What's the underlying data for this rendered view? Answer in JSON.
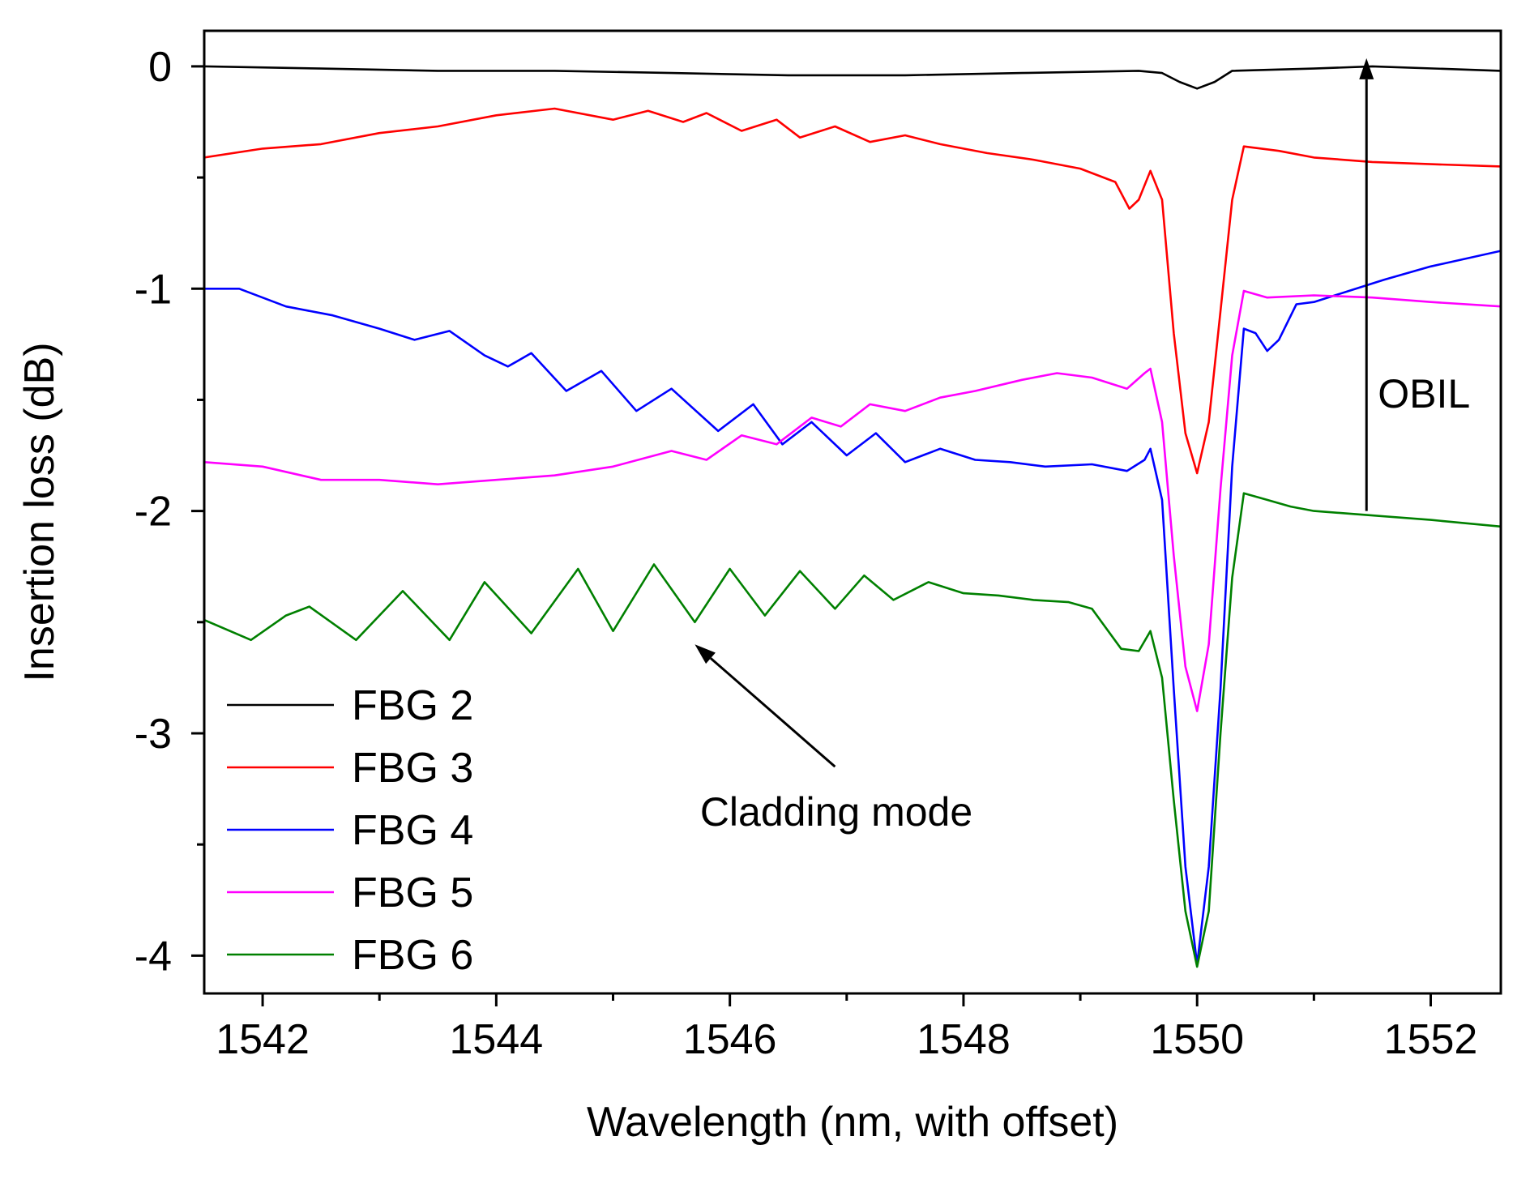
{
  "chart_data": {
    "type": "line",
    "title": "",
    "xlabel": "Wavelength (nm, with offset)",
    "ylabel": "Insertion loss (dB)",
    "xlim": [
      1541.5,
      1552.6
    ],
    "ylim": [
      -4.17,
      0.16
    ],
    "x_ticks": [
      1542,
      1544,
      1546,
      1548,
      1550,
      1552
    ],
    "x_tick_labels": [
      "1542",
      "1544",
      "1546",
      "1548",
      "1550",
      "1552"
    ],
    "x_minor_ticks": [
      1543,
      1545,
      1547,
      1549,
      1551
    ],
    "y_ticks": [
      0,
      -1,
      -2,
      -3,
      -4
    ],
    "y_tick_labels": [
      "0",
      "-1",
      "-2",
      "-3",
      "-4"
    ],
    "y_minor_ticks": [
      -0.5,
      -1.5,
      -2.5,
      -3.5
    ],
    "grid": false,
    "legend_position": "bottom-left",
    "series": [
      {
        "name": "FBG 2",
        "color": "#000000",
        "points": [
          [
            1541.5,
            0.0
          ],
          [
            1542.5,
            -0.01
          ],
          [
            1543.5,
            -0.02
          ],
          [
            1544.5,
            -0.02
          ],
          [
            1545.5,
            -0.03
          ],
          [
            1546.5,
            -0.04
          ],
          [
            1547.5,
            -0.04
          ],
          [
            1548.5,
            -0.03
          ],
          [
            1549.5,
            -0.02
          ],
          [
            1549.7,
            -0.03
          ],
          [
            1549.85,
            -0.07
          ],
          [
            1550.0,
            -0.1
          ],
          [
            1550.15,
            -0.07
          ],
          [
            1550.3,
            -0.02
          ],
          [
            1551.0,
            -0.01
          ],
          [
            1551.5,
            0.0
          ],
          [
            1552.6,
            -0.02
          ]
        ]
      },
      {
        "name": "FBG 3",
        "color": "#ff0000",
        "points": [
          [
            1541.5,
            -0.41
          ],
          [
            1542.0,
            -0.37
          ],
          [
            1542.5,
            -0.35
          ],
          [
            1543.0,
            -0.3
          ],
          [
            1543.5,
            -0.27
          ],
          [
            1544.0,
            -0.22
          ],
          [
            1544.5,
            -0.19
          ],
          [
            1545.0,
            -0.24
          ],
          [
            1545.3,
            -0.2
          ],
          [
            1545.6,
            -0.25
          ],
          [
            1545.8,
            -0.21
          ],
          [
            1546.1,
            -0.29
          ],
          [
            1546.4,
            -0.24
          ],
          [
            1546.6,
            -0.32
          ],
          [
            1546.9,
            -0.27
          ],
          [
            1547.2,
            -0.34
          ],
          [
            1547.5,
            -0.31
          ],
          [
            1547.8,
            -0.35
          ],
          [
            1548.2,
            -0.39
          ],
          [
            1548.6,
            -0.42
          ],
          [
            1549.0,
            -0.46
          ],
          [
            1549.3,
            -0.52
          ],
          [
            1549.42,
            -0.64
          ],
          [
            1549.5,
            -0.6
          ],
          [
            1549.6,
            -0.47
          ],
          [
            1549.7,
            -0.6
          ],
          [
            1549.8,
            -1.2
          ],
          [
            1549.9,
            -1.65
          ],
          [
            1550.0,
            -1.83
          ],
          [
            1550.1,
            -1.6
          ],
          [
            1550.2,
            -1.1
          ],
          [
            1550.3,
            -0.6
          ],
          [
            1550.4,
            -0.36
          ],
          [
            1550.7,
            -0.38
          ],
          [
            1551.0,
            -0.41
          ],
          [
            1551.5,
            -0.43
          ],
          [
            1552.0,
            -0.44
          ],
          [
            1552.6,
            -0.45
          ]
        ]
      },
      {
        "name": "FBG 4",
        "color": "#0000ff",
        "points": [
          [
            1541.5,
            -1.0
          ],
          [
            1541.8,
            -1.0
          ],
          [
            1542.2,
            -1.08
          ],
          [
            1542.6,
            -1.12
          ],
          [
            1543.0,
            -1.18
          ],
          [
            1543.3,
            -1.23
          ],
          [
            1543.6,
            -1.19
          ],
          [
            1543.9,
            -1.3
          ],
          [
            1544.1,
            -1.35
          ],
          [
            1544.3,
            -1.29
          ],
          [
            1544.6,
            -1.46
          ],
          [
            1544.9,
            -1.37
          ],
          [
            1545.2,
            -1.55
          ],
          [
            1545.5,
            -1.45
          ],
          [
            1545.9,
            -1.64
          ],
          [
            1546.2,
            -1.52
          ],
          [
            1546.45,
            -1.7
          ],
          [
            1546.7,
            -1.6
          ],
          [
            1547.0,
            -1.75
          ],
          [
            1547.25,
            -1.65
          ],
          [
            1547.5,
            -1.78
          ],
          [
            1547.8,
            -1.72
          ],
          [
            1548.1,
            -1.77
          ],
          [
            1548.4,
            -1.78
          ],
          [
            1548.7,
            -1.8
          ],
          [
            1549.1,
            -1.79
          ],
          [
            1549.4,
            -1.82
          ],
          [
            1549.55,
            -1.77
          ],
          [
            1549.6,
            -1.72
          ],
          [
            1549.7,
            -1.95
          ],
          [
            1549.8,
            -2.8
          ],
          [
            1549.9,
            -3.6
          ],
          [
            1550.0,
            -4.04
          ],
          [
            1550.1,
            -3.6
          ],
          [
            1550.2,
            -2.8
          ],
          [
            1550.3,
            -1.8
          ],
          [
            1550.4,
            -1.18
          ],
          [
            1550.5,
            -1.2
          ],
          [
            1550.6,
            -1.28
          ],
          [
            1550.7,
            -1.23
          ],
          [
            1550.85,
            -1.07
          ],
          [
            1551.0,
            -1.06
          ],
          [
            1551.3,
            -1.01
          ],
          [
            1551.6,
            -0.96
          ],
          [
            1552.0,
            -0.9
          ],
          [
            1552.6,
            -0.83
          ]
        ]
      },
      {
        "name": "FBG 5",
        "color": "#ff00ff",
        "points": [
          [
            1541.5,
            -1.78
          ],
          [
            1542.0,
            -1.8
          ],
          [
            1542.5,
            -1.86
          ],
          [
            1543.0,
            -1.86
          ],
          [
            1543.5,
            -1.88
          ],
          [
            1544.0,
            -1.86
          ],
          [
            1544.5,
            -1.84
          ],
          [
            1545.0,
            -1.8
          ],
          [
            1545.5,
            -1.73
          ],
          [
            1545.8,
            -1.77
          ],
          [
            1546.1,
            -1.66
          ],
          [
            1546.4,
            -1.7
          ],
          [
            1546.7,
            -1.58
          ],
          [
            1546.95,
            -1.62
          ],
          [
            1547.2,
            -1.52
          ],
          [
            1547.5,
            -1.55
          ],
          [
            1547.8,
            -1.49
          ],
          [
            1548.1,
            -1.46
          ],
          [
            1548.5,
            -1.41
          ],
          [
            1548.8,
            -1.38
          ],
          [
            1549.1,
            -1.4
          ],
          [
            1549.4,
            -1.45
          ],
          [
            1549.55,
            -1.38
          ],
          [
            1549.6,
            -1.36
          ],
          [
            1549.7,
            -1.6
          ],
          [
            1549.8,
            -2.2
          ],
          [
            1549.9,
            -2.7
          ],
          [
            1550.0,
            -2.9
          ],
          [
            1550.1,
            -2.6
          ],
          [
            1550.2,
            -1.9
          ],
          [
            1550.3,
            -1.3
          ],
          [
            1550.4,
            -1.01
          ],
          [
            1550.6,
            -1.04
          ],
          [
            1551.0,
            -1.03
          ],
          [
            1551.5,
            -1.04
          ],
          [
            1552.0,
            -1.06
          ],
          [
            1552.6,
            -1.08
          ]
        ]
      },
      {
        "name": "FBG 6",
        "color": "#008000",
        "points": [
          [
            1541.5,
            -2.49
          ],
          [
            1541.9,
            -2.58
          ],
          [
            1542.2,
            -2.47
          ],
          [
            1542.4,
            -2.43
          ],
          [
            1542.8,
            -2.58
          ],
          [
            1543.2,
            -2.36
          ],
          [
            1543.6,
            -2.58
          ],
          [
            1543.9,
            -2.32
          ],
          [
            1544.3,
            -2.55
          ],
          [
            1544.7,
            -2.26
          ],
          [
            1545.0,
            -2.54
          ],
          [
            1545.35,
            -2.24
          ],
          [
            1545.7,
            -2.5
          ],
          [
            1546.0,
            -2.26
          ],
          [
            1546.3,
            -2.47
          ],
          [
            1546.6,
            -2.27
          ],
          [
            1546.9,
            -2.44
          ],
          [
            1547.15,
            -2.29
          ],
          [
            1547.4,
            -2.4
          ],
          [
            1547.7,
            -2.32
          ],
          [
            1548.0,
            -2.37
          ],
          [
            1548.3,
            -2.38
          ],
          [
            1548.6,
            -2.4
          ],
          [
            1548.9,
            -2.41
          ],
          [
            1549.1,
            -2.44
          ],
          [
            1549.35,
            -2.62
          ],
          [
            1549.5,
            -2.63
          ],
          [
            1549.6,
            -2.54
          ],
          [
            1549.7,
            -2.75
          ],
          [
            1549.8,
            -3.3
          ],
          [
            1549.9,
            -3.8
          ],
          [
            1550.0,
            -4.05
          ],
          [
            1550.1,
            -3.8
          ],
          [
            1550.2,
            -3.0
          ],
          [
            1550.3,
            -2.3
          ],
          [
            1550.4,
            -1.92
          ],
          [
            1550.6,
            -1.95
          ],
          [
            1550.8,
            -1.98
          ],
          [
            1551.0,
            -2.0
          ],
          [
            1551.5,
            -2.02
          ],
          [
            1552.0,
            -2.04
          ],
          [
            1552.6,
            -2.07
          ]
        ]
      }
    ],
    "annotations": {
      "obil": {
        "text": "OBIL",
        "arrow_x": 1551.45,
        "arrow_from_y": -2.0,
        "arrow_to_y": 0.0
      },
      "cladding": {
        "text": "Cladding mode",
        "arrow_from": [
          1546.9,
          -3.15
        ],
        "arrow_to": [
          1545.7,
          -2.6
        ]
      }
    }
  }
}
